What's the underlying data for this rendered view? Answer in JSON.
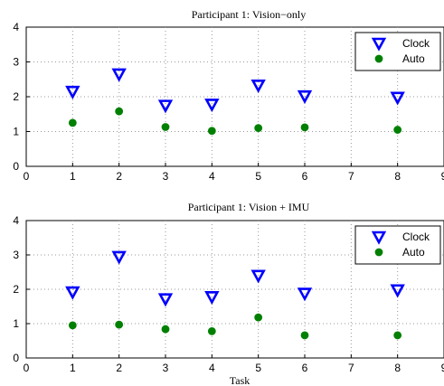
{
  "chart_data": [
    {
      "type": "scatter",
      "title": "Participant 1: Vision−only",
      "xlabel": "",
      "ylabel": "",
      "xlim": [
        0,
        9
      ],
      "ylim": [
        0,
        4
      ],
      "xticks": [
        "0",
        "1",
        "2",
        "3",
        "4",
        "5",
        "6",
        "7",
        "8",
        "9"
      ],
      "yticks": [
        "0",
        "1",
        "2",
        "3",
        "4"
      ],
      "grid": true,
      "legend_position": "top-right",
      "series": [
        {
          "name": "Clock",
          "marker": "triangle-down",
          "color": "#0000ff",
          "x": [
            1,
            2,
            3,
            4,
            5,
            6,
            8
          ],
          "y": [
            2.15,
            2.65,
            1.75,
            1.78,
            2.33,
            2.02,
            1.98
          ]
        },
        {
          "name": "Auto",
          "marker": "circle",
          "color": "#008000",
          "x": [
            1,
            2,
            3,
            4,
            5,
            6,
            8
          ],
          "y": [
            1.25,
            1.58,
            1.13,
            1.02,
            1.1,
            1.12,
            1.05
          ]
        }
      ]
    },
    {
      "type": "scatter",
      "title": "Participant 1: Vision + IMU",
      "xlabel": "Task",
      "ylabel": "",
      "xlim": [
        0,
        9
      ],
      "ylim": [
        0,
        4
      ],
      "xticks": [
        "0",
        "1",
        "2",
        "3",
        "4",
        "5",
        "6",
        "7",
        "8",
        "9"
      ],
      "yticks": [
        "0",
        "1",
        "2",
        "3",
        "4"
      ],
      "grid": true,
      "legend_position": "top-right",
      "series": [
        {
          "name": "Clock",
          "marker": "triangle-down",
          "color": "#0000ff",
          "x": [
            1,
            2,
            3,
            4,
            5,
            6,
            8
          ],
          "y": [
            1.92,
            2.95,
            1.72,
            1.78,
            2.4,
            1.88,
            1.98
          ]
        },
        {
          "name": "Auto",
          "marker": "circle",
          "color": "#008000",
          "x": [
            1,
            2,
            3,
            4,
            5,
            6,
            8
          ],
          "y": [
            0.95,
            0.97,
            0.84,
            0.78,
            1.18,
            0.66,
            0.66
          ]
        }
      ]
    }
  ]
}
